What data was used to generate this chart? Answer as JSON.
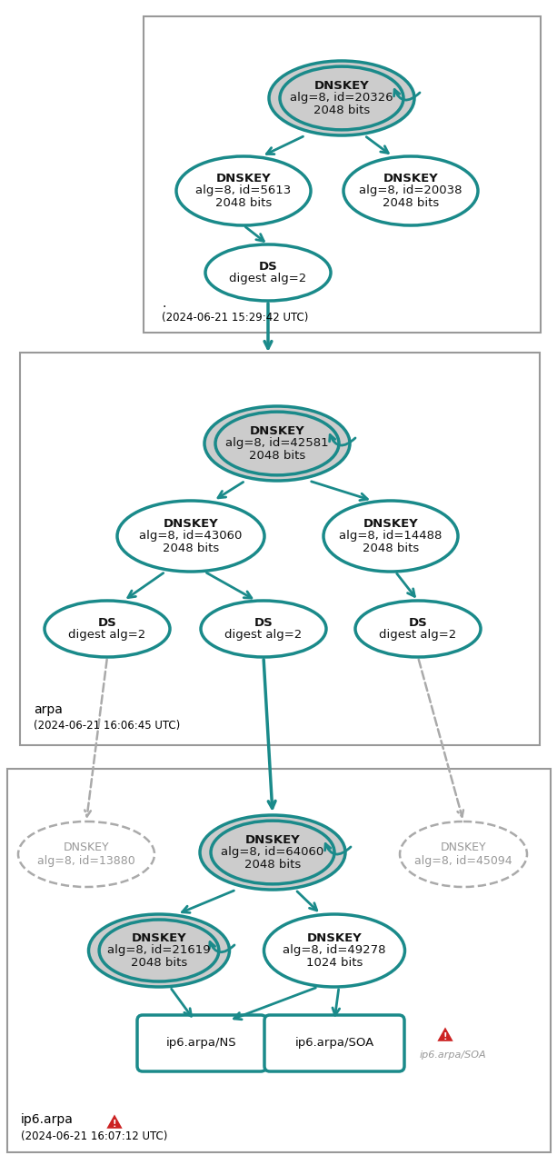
{
  "teal": "#1a8a8a",
  "gray_fill": "#cccccc",
  "white_fill": "#FFFFFF",
  "dashed_gray": "#aaaaaa",
  "red_warning": "#cc2222",
  "panel1": {
    "label": ".",
    "timestamp": "(2024-06-21 15:29:42 UTC)",
    "ksk": "DNSKEY\nalg=8, id=20326\n2048 bits",
    "zsk1": "DNSKEY\nalg=8, id=5613\n2048 bits",
    "zsk2": "DNSKEY\nalg=8, id=20038\n2048 bits",
    "ds": "DS\ndigest alg=2"
  },
  "panel2": {
    "label": "arpa",
    "timestamp": "(2024-06-21 16:06:45 UTC)",
    "ksk": "DNSKEY\nalg=8, id=42581\n2048 bits",
    "zsk1": "DNSKEY\nalg=8, id=43060\n2048 bits",
    "zsk2": "DNSKEY\nalg=8, id=14488\n2048 bits",
    "ds1": "DS\ndigest alg=2",
    "ds2": "DS\ndigest alg=2",
    "ds3": "DS\ndigest alg=2"
  },
  "panel3": {
    "label": "ip6.arpa",
    "timestamp": "(2024-06-21 16:07:12 UTC)",
    "ksk": "DNSKEY\nalg=8, id=64060\n2048 bits",
    "zsk1": "DNSKEY\nalg=8, id=21619\n2048 bits",
    "zsk2": "DNSKEY\nalg=8, id=49278\n1024 bits",
    "ghost1": "DNSKEY\nalg=8, id=13880",
    "ghost2": "DNSKEY\nalg=8, id=45094",
    "ns": "ip6.arpa/NS",
    "soa": "ip6.arpa/SOA",
    "soa_warn_label": "ip6.arpa/SOA"
  }
}
